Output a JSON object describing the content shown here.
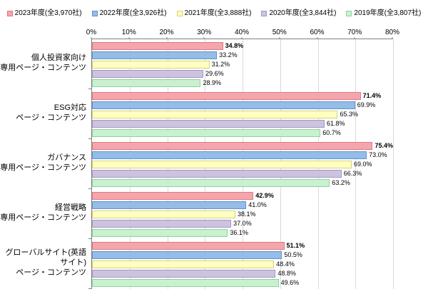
{
  "chart_data": {
    "type": "bar",
    "orientation": "horizontal",
    "title": "",
    "xlabel": "",
    "ylabel": "",
    "xlim": [
      0,
      80
    ],
    "x_ticks": [
      "0%",
      "10%",
      "20%",
      "30%",
      "40%",
      "50%",
      "60%",
      "70%",
      "80%"
    ],
    "grid": true,
    "legend_position": "top",
    "value_suffix": "%",
    "categories": [
      "個人投資家向け\n専用ページ・コンテンツ",
      "ESG対応\nページ・コンテンツ",
      "ガバナンス\n専用ページ・コンテンツ",
      "経営戦略\n専用ページ・コンテンツ",
      "グローバルサイト(英語サイト)\nページ・コンテンツ"
    ],
    "series": [
      {
        "name": "2023年度(全3,970社)",
        "fill": "#f5a5ac",
        "border": "#dd7a84",
        "values": [
          34.8,
          71.4,
          75.4,
          42.9,
          51.1
        ]
      },
      {
        "name": "2022年度(全3,926社)",
        "fill": "#94bde7",
        "border": "#6593cc",
        "values": [
          33.2,
          69.9,
          73.0,
          41.0,
          50.5
        ]
      },
      {
        "name": "2021年度(全3,888社)",
        "fill": "#ffffc2",
        "border": "#d9d077",
        "values": [
          31.2,
          65.3,
          69.0,
          38.1,
          48.4
        ]
      },
      {
        "name": "2020年度(全3,844社)",
        "fill": "#cdc3df",
        "border": "#a497c4",
        "values": [
          29.6,
          61.8,
          66.3,
          37.0,
          48.8
        ]
      },
      {
        "name": "2019年度(全3,807社)",
        "fill": "#c9f1d0",
        "border": "#8ed39c",
        "values": [
          28.9,
          60.7,
          63.2,
          36.1,
          49.6
        ]
      }
    ]
  }
}
